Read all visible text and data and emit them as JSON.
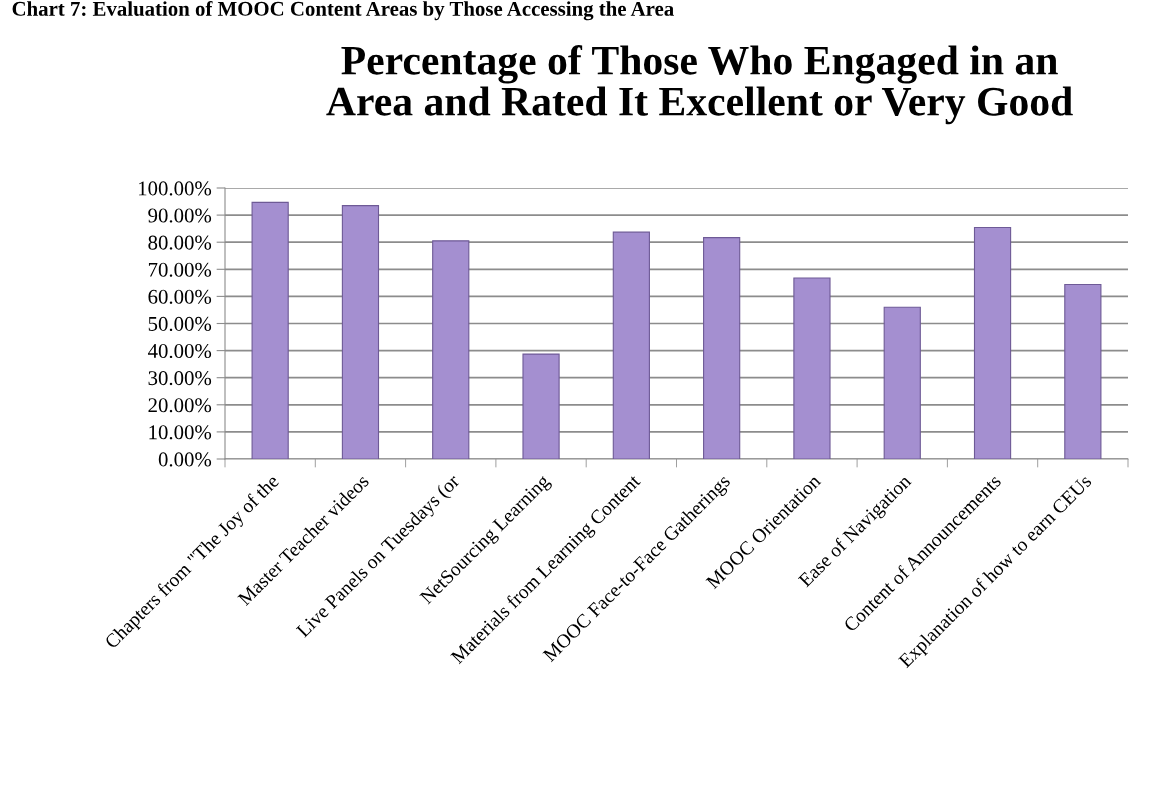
{
  "chart_data": {
    "type": "bar",
    "title": "Percentage of Those Who Engaged in an\nArea and Rated It Excellent or Very Good",
    "annotations": [
      "Chart 7: Evaluation of MOOC Content Areas by Those Accessing the Area"
    ],
    "categories": [
      "Chapters from \"The Joy of the",
      "Master Teacher videos",
      "Live Panels on Tuesdays (or",
      "NetSourcing Learning",
      "Materials from Learning Content",
      "MOOC Face-to-Face Gatherings",
      "MOOC Orientation",
      "Ease of Navigation",
      "Content of Announcements",
      "Explanation of how to earn CEUs"
    ],
    "values": [
      94.7,
      93.5,
      80.5,
      38.7,
      83.7,
      81.7,
      66.8,
      56.0,
      85.4,
      64.4
    ],
    "color": "#a48fd0",
    "ylim": [
      0,
      100
    ],
    "yticks": [
      {
        "value": 0,
        "label": "0.00%"
      },
      {
        "value": 10,
        "label": "10.00%"
      },
      {
        "value": 20,
        "label": "20.00%"
      },
      {
        "value": 30,
        "label": "30.00%"
      },
      {
        "value": 40,
        "label": "40.00%"
      },
      {
        "value": 50,
        "label": "50.00%"
      },
      {
        "value": 60,
        "label": "60.00%"
      },
      {
        "value": 70,
        "label": "70.00%"
      },
      {
        "value": 80,
        "label": "80.00%"
      },
      {
        "value": 90,
        "label": "90.00%"
      },
      {
        "value": 100,
        "label": "100.00%"
      }
    ],
    "grid": "y"
  }
}
